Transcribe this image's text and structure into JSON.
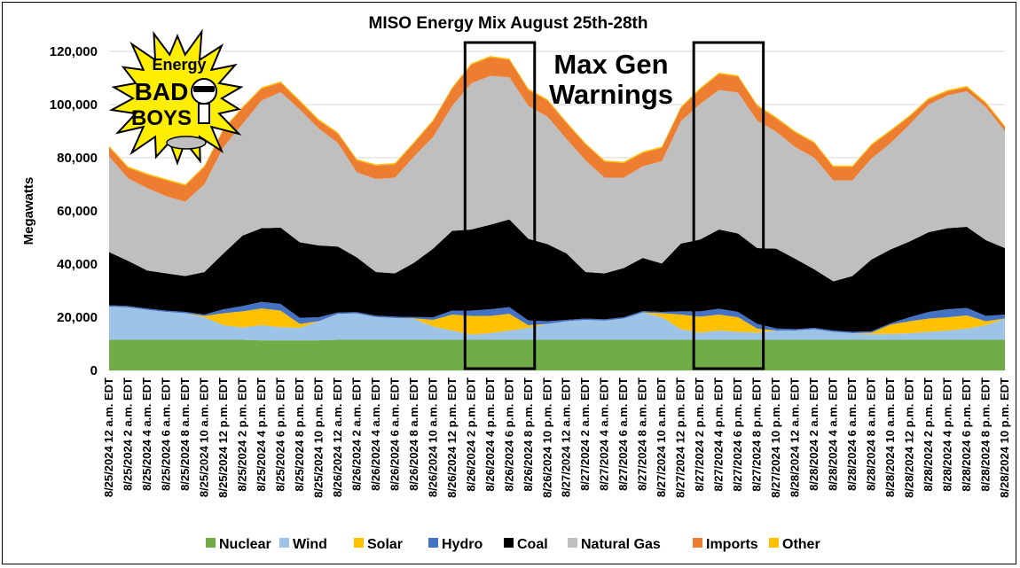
{
  "chart_data": {
    "type": "area",
    "stacked": true,
    "title": "MISO Energy Mix August 25th-28th",
    "xlabel": "",
    "ylabel": "Megawatts",
    "ylim": [
      0,
      120000
    ],
    "yticks": [
      "0",
      "20,000",
      "40,000",
      "60,000",
      "80,000",
      "100,000",
      "120,000"
    ],
    "ytick_values": [
      0,
      20000,
      40000,
      60000,
      80000,
      100000,
      120000
    ],
    "gridlines": true,
    "legend_position": "bottom",
    "categories": [
      "8/25/2024 12 a.m. EDT",
      "8/25/2024 2 a.m. EDT",
      "8/25/2024 4 a.m. EDT",
      "8/25/2024 6 a.m. EDT",
      "8/25/2024 8 a.m. EDT",
      "8/25/2024 10 a.m. EDT",
      "8/25/2024 12 p.m. EDT",
      "8/25/2024 2 p.m. EDT",
      "8/25/2024 4 p.m. EDT",
      "8/25/2024 6 p.m. EDT",
      "8/25/2024 8 p.m. EDT",
      "8/25/2024 10 p.m. EDT",
      "8/26/2024 12 a.m. EDT",
      "8/26/2024 2 a.m. EDT",
      "8/26/2024 4 a.m. EDT",
      "8/26/2024 6 a.m. EDT",
      "8/26/2024 8 a.m. EDT",
      "8/26/2024 10 a.m. EDT",
      "8/26/2024 12 p.m. EDT",
      "8/26/2024 2 p.m. EDT",
      "8/26/2024 4 p.m. EDT",
      "8/26/2024 6 p.m. EDT",
      "8/26/2024 8 p.m. EDT",
      "8/26/2024 10 p.m. EDT",
      "8/27/2024 12 a.m. EDT",
      "8/27/2024 2 a.m. EDT",
      "8/27/2024 4 a.m. EDT",
      "8/27/2024 6 a.m. EDT",
      "8/27/2024 8 a.m. EDT",
      "8/27/2024 10 a.m. EDT",
      "8/27/2024 12 p.m. EDT",
      "8/27/2024 2 p.m. EDT",
      "8/27/2024 4 p.m. EDT",
      "8/27/2024 6 p.m. EDT",
      "8/27/2024 8 p.m. EDT",
      "8/27/2024 10 p.m. EDT",
      "8/28/2024 12 a.m. EDT",
      "8/28/2024 2 a.m. EDT",
      "8/28/2024 4 a.m. EDT",
      "8/28/2024 6 a.m. EDT",
      "8/28/2024 8 a.m. EDT",
      "8/28/2024 10 a.m. EDT",
      "8/28/2024 12 p.m. EDT",
      "8/28/2024 2 p.m. EDT",
      "8/28/2024 4 p.m. EDT",
      "8/28/2024 6 p.m. EDT",
      "8/28/2024 8 p.m. EDT",
      "8/28/2024 10 p.m. EDT"
    ],
    "series": [
      {
        "name": "Nuclear",
        "color": "#70ad47",
        "values": [
          11500,
          11500,
          11500,
          11500,
          11500,
          11500,
          11500,
          11500,
          11300,
          11300,
          11300,
          11300,
          11500,
          11500,
          11500,
          11500,
          11500,
          11500,
          11500,
          11500,
          11500,
          11500,
          11500,
          11500,
          11500,
          11500,
          11500,
          11500,
          11500,
          11500,
          11500,
          11500,
          11500,
          11500,
          11500,
          11500,
          11500,
          11500,
          11500,
          11500,
          11500,
          11500,
          11500,
          11500,
          11500,
          11500,
          11500,
          11500
        ]
      },
      {
        "name": "Wind",
        "color": "#9dc3e6",
        "values": [
          12500,
          12200,
          11300,
          10500,
          10000,
          8500,
          5500,
          4700,
          5700,
          5000,
          4700,
          7200,
          9800,
          9900,
          8600,
          8200,
          7900,
          5000,
          3500,
          2000,
          2500,
          3500,
          4500,
          6000,
          7000,
          7500,
          7200,
          8000,
          10300,
          8500,
          4000,
          2700,
          3500,
          3000,
          2700,
          3500,
          3500,
          4000,
          3000,
          2500,
          2200,
          2200,
          2500,
          3000,
          3500,
          4200,
          5500,
          8000
        ]
      },
      {
        "name": "Solar",
        "color": "#ffc000",
        "values": [
          0,
          0,
          0,
          0,
          0,
          500,
          4500,
          6000,
          6300,
          6200,
          1500,
          0,
          0,
          0,
          0,
          0,
          200,
          2500,
          6000,
          7000,
          6500,
          6300,
          1000,
          0,
          0,
          0,
          0,
          0,
          0,
          1500,
          5500,
          6000,
          6000,
          5500,
          1500,
          0,
          0,
          0,
          0,
          0,
          500,
          3500,
          4500,
          5000,
          5000,
          5000,
          1500,
          0
        ]
      },
      {
        "name": "Hydro",
        "color": "#4472c4",
        "values": [
          500,
          500,
          500,
          500,
          500,
          500,
          1500,
          2000,
          2500,
          2500,
          2300,
          1500,
          500,
          500,
          500,
          500,
          500,
          1000,
          1500,
          2000,
          2500,
          2500,
          1800,
          1000,
          500,
          500,
          500,
          500,
          500,
          500,
          1200,
          2000,
          2200,
          2000,
          1800,
          800,
          500,
          500,
          500,
          500,
          500,
          500,
          1500,
          2500,
          3000,
          2800,
          2000,
          1500
        ]
      },
      {
        "name": "Coal",
        "color": "#000000",
        "values": [
          20000,
          17000,
          14300,
          14000,
          13500,
          16000,
          21000,
          26500,
          27700,
          28700,
          28400,
          27000,
          24800,
          20600,
          16400,
          16300,
          20400,
          25800,
          30000,
          30500,
          31800,
          33000,
          30700,
          29000,
          25000,
          17500,
          17300,
          18500,
          20000,
          18200,
          25500,
          27000,
          29800,
          29500,
          28500,
          30000,
          26500,
          22000,
          18500,
          21000,
          27000,
          27800,
          28500,
          30000,
          30500,
          30500,
          28500,
          25000
        ]
      },
      {
        "name": "Natural Gas",
        "color": "#bfbfbf",
        "values": [
          36000,
          31000,
          31000,
          29000,
          28000,
          33000,
          40000,
          42000,
          48000,
          51000,
          50000,
          44000,
          39000,
          32000,
          35000,
          36000,
          40000,
          42000,
          47000,
          55000,
          56000,
          53500,
          50000,
          48000,
          43000,
          42000,
          36000,
          34000,
          34500,
          38500,
          46000,
          51000,
          52500,
          53000,
          48000,
          44000,
          42000,
          42000,
          38000,
          36000,
          38000,
          40000,
          44000,
          48000,
          50000,
          51000,
          50000,
          44000
        ]
      },
      {
        "name": "Imports",
        "color": "#ed7d31",
        "values": [
          3500,
          4000,
          5000,
          6000,
          6000,
          6500,
          6500,
          6000,
          4500,
          3500,
          3000,
          3000,
          3500,
          4500,
          5000,
          5000,
          5000,
          6000,
          6500,
          7000,
          7000,
          6500,
          6000,
          6000,
          6000,
          6000,
          6000,
          5500,
          5000,
          5000,
          5000,
          5500,
          6000,
          6000,
          5500,
          5000,
          5500,
          5500,
          5000,
          5000,
          5000,
          4500,
          3000,
          2000,
          1500,
          1500,
          1500,
          1500
        ]
      },
      {
        "name": "Other",
        "color": "#ffc000",
        "values": [
          500,
          500,
          500,
          500,
          500,
          500,
          500,
          500,
          500,
          500,
          500,
          500,
          500,
          500,
          500,
          500,
          500,
          500,
          500,
          500,
          500,
          500,
          500,
          500,
          500,
          500,
          500,
          500,
          500,
          500,
          500,
          500,
          500,
          500,
          500,
          500,
          500,
          500,
          500,
          500,
          500,
          500,
          500,
          500,
          500,
          500,
          500,
          500
        ]
      }
    ],
    "annotations": [
      {
        "label": "Max Gen Warnings",
        "text_lines": [
          "Max Gen",
          "Warnings"
        ],
        "boxes": [
          {
            "from": "8/26/2024 2 p.m. EDT",
            "to": "8/26/2024 8 p.m. EDT"
          },
          {
            "from": "8/27/2024 2 p.m. EDT",
            "to": "8/27/2024 8 p.m. EDT"
          }
        ]
      }
    ],
    "logo": {
      "name": "Energy Bad Boys",
      "lines": [
        "Energy",
        "BAD",
        "BOYS"
      ]
    }
  }
}
